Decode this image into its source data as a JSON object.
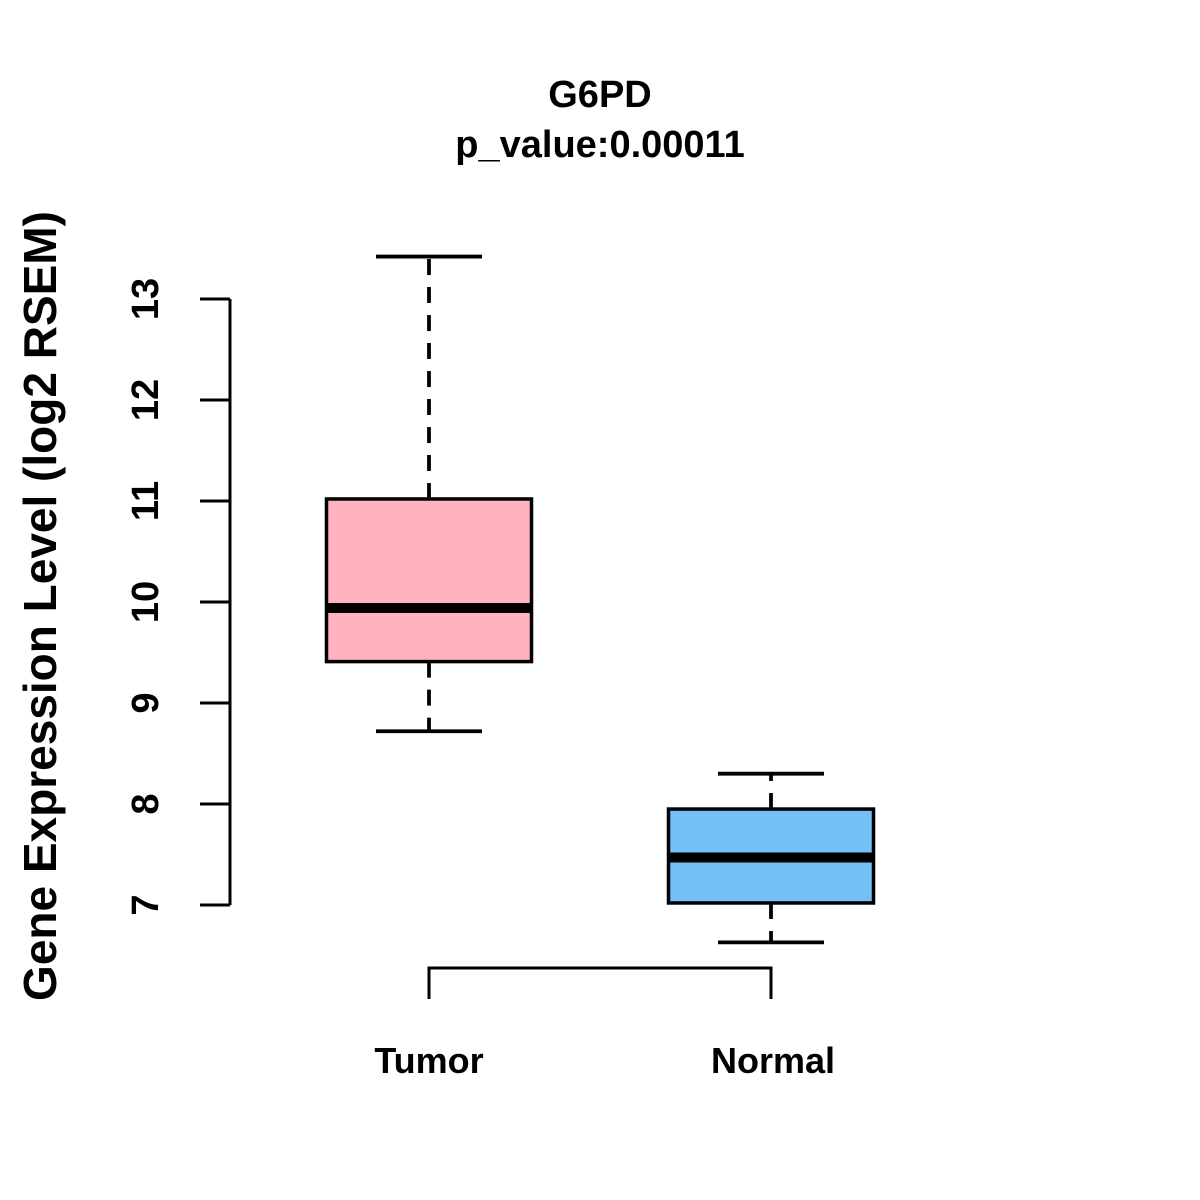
{
  "page": {
    "background": "#FFFFFF",
    "text_color": "#000000"
  },
  "chart_data": {
    "type": "boxplot",
    "title": "G6PD",
    "subtitle": "p_value:0.00011",
    "p_value": "0.00011",
    "ylabel": "Gene Expression Level (log2 RSEM)",
    "xlabel": "",
    "y_ticks": [
      7,
      8,
      9,
      10,
      11,
      12,
      13
    ],
    "y_axis_range": [
      7,
      13
    ],
    "grid": "off",
    "legend": "none",
    "categories": [
      "Tumor",
      "Normal"
    ],
    "groups": [
      {
        "name": "Tumor",
        "color": "#FFB3C1",
        "stats": {
          "whisker_low": 8.72,
          "q1": 9.41,
          "median": 9.94,
          "q3": 11.02,
          "whisker_high": 13.42
        },
        "outliers": []
      },
      {
        "name": "Normal",
        "color": "#74BFF8",
        "stats": {
          "whisker_low": 6.63,
          "q1": 7.02,
          "median": 7.47,
          "q3": 7.95,
          "whisker_high": 8.3
        },
        "outliers": []
      }
    ],
    "styles": {
      "box_border_color": "#000000",
      "median_color": "#000000",
      "axis_color": "#000000",
      "whisker_style": "dashed"
    }
  }
}
